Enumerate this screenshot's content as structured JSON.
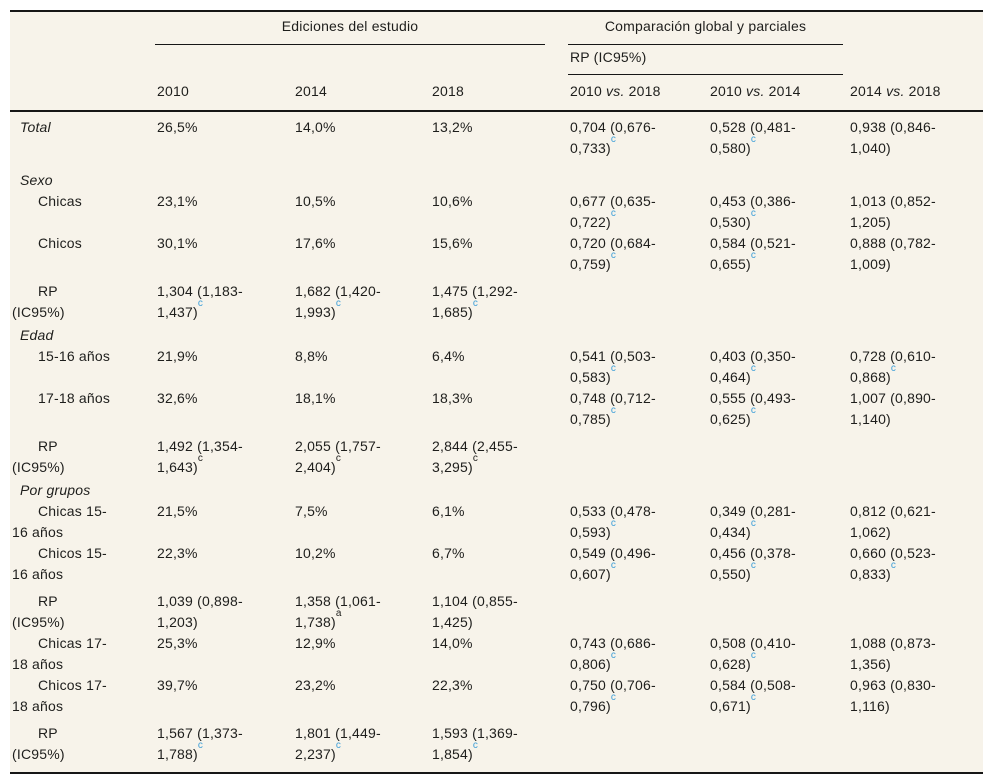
{
  "table": {
    "header": {
      "group1": "Ediciones del estudio",
      "group2": "Comparación global y parciales",
      "subgroup": "RP (IC95%)",
      "columns": [
        "2010",
        "2014",
        "2018",
        "2010 vs. 2018",
        "2010 vs. 2014",
        "2014 vs. 2018"
      ]
    },
    "rows": [
      {
        "kind": "data",
        "italic": true,
        "label_lines": [
          "Total"
        ],
        "cells": [
          {
            "t": "26,5%"
          },
          {
            "t": "14,0%"
          },
          {
            "t": "13,2%"
          },
          {
            "t": "0,704 (0,676-0,733)",
            "sup": "c",
            "blue": true
          },
          {
            "t": "0,528 (0,481-0,580)",
            "sup": "c",
            "blue": true
          },
          {
            "t": "0,938 (0,846-1,040)"
          }
        ]
      },
      {
        "kind": "section",
        "label_lines": [
          "Sexo"
        ]
      },
      {
        "kind": "data",
        "indent": true,
        "label_lines": [
          "Chicas"
        ],
        "cells": [
          {
            "t": "23,1%"
          },
          {
            "t": "10,5%"
          },
          {
            "t": "10,6%"
          },
          {
            "t": "0,677 (0,635-0,722)",
            "sup": "c",
            "blue": true
          },
          {
            "t": "0,453 (0,386-0,530)",
            "sup": "c",
            "blue": true
          },
          {
            "t": "1,013 (0,852-1,205)"
          }
        ]
      },
      {
        "kind": "data",
        "indent": true,
        "label_lines": [
          "Chicos"
        ],
        "cells": [
          {
            "t": "30,1%"
          },
          {
            "t": "17,6%"
          },
          {
            "t": "15,6%"
          },
          {
            "t": "0,720 (0,684-0,759)",
            "sup": "c",
            "blue": true
          },
          {
            "t": "0,584 (0,521-0,655)",
            "sup": "c",
            "blue": true
          },
          {
            "t": "0,888 (0,782-1,009)"
          }
        ]
      },
      {
        "kind": "data",
        "indent": true,
        "label_lines": [
          "RP",
          "(IC95%)"
        ],
        "cells": [
          {
            "t": "1,304 (1,183-1,437)",
            "sup": "c",
            "blue": true
          },
          {
            "t": "1,682 (1,420-1,993)",
            "sup": "c",
            "blue": true
          },
          {
            "t": "1,475 (1,292-1,685)",
            "sup": "c",
            "blue": true
          },
          null,
          null,
          null
        ]
      },
      {
        "kind": "section",
        "label_lines": [
          "Edad"
        ]
      },
      {
        "kind": "data",
        "indent": true,
        "label_lines": [
          "15-16 años"
        ],
        "cells": [
          {
            "t": "21,9%"
          },
          {
            "t": "8,8%"
          },
          {
            "t": "6,4%"
          },
          {
            "t": "0,541 (0,503-0,583)",
            "sup": "c",
            "blue": true
          },
          {
            "t": "0,403 (0,350-0,464)",
            "sup": "c",
            "blue": true
          },
          {
            "t": "0,728 (0,610-0,868)",
            "sup": "c",
            "blue": true
          }
        ]
      },
      {
        "kind": "data",
        "indent": true,
        "label_lines": [
          "17-18 años"
        ],
        "cells": [
          {
            "t": "32,6%"
          },
          {
            "t": "18,1%"
          },
          {
            "t": "18,3%"
          },
          {
            "t": "0,748 (0,712-0,785)",
            "sup": "c",
            "blue": true
          },
          {
            "t": "0,555 (0,493-0,625)",
            "sup": "c",
            "blue": true
          },
          {
            "t": "1,007 (0,890-1,140)"
          }
        ]
      },
      {
        "kind": "data",
        "indent": true,
        "label_lines": [
          "RP",
          "(IC95%)"
        ],
        "cells": [
          {
            "t": "1,492 (1,354-1,643)",
            "sup": "c",
            "blue": false
          },
          {
            "t": "2,055 (1,757-2,404)",
            "sup": "c",
            "blue": false
          },
          {
            "t": "2,844 (2,455-3,295)",
            "sup": "c",
            "blue": false
          },
          null,
          null,
          null
        ]
      },
      {
        "kind": "section",
        "label_lines": [
          "Por grupos"
        ]
      },
      {
        "kind": "data",
        "indent": true,
        "label_lines": [
          "Chicas 15-",
          "16 años"
        ],
        "cells": [
          {
            "t": "21,5%"
          },
          {
            "t": "7,5%"
          },
          {
            "t": "6,1%"
          },
          {
            "t": "0,533 (0,478-0,593)",
            "sup": "c",
            "blue": true
          },
          {
            "t": "0,349 (0,281-0,434)",
            "sup": "c",
            "blue": true
          },
          {
            "t": "0,812 (0,621-1,062)"
          }
        ]
      },
      {
        "kind": "data",
        "indent": true,
        "label_lines": [
          "Chicos 15-",
          "16 años"
        ],
        "cells": [
          {
            "t": "22,3%"
          },
          {
            "t": "10,2%"
          },
          {
            "t": "6,7%"
          },
          {
            "t": "0,549 (0,496-0,607)",
            "sup": "c",
            "blue": true
          },
          {
            "t": "0,456 (0,378-0,550)",
            "sup": "c",
            "blue": true
          },
          {
            "t": "0,660 (0,523-0,833)",
            "sup": "c",
            "blue": true
          }
        ]
      },
      {
        "kind": "data",
        "indent": true,
        "label_lines": [
          "RP",
          "(IC95%)"
        ],
        "cells": [
          {
            "t": "1,039 (0,898-1,203)"
          },
          {
            "t": "1,358 (1,061-1,738)",
            "sup": "a",
            "blue": false
          },
          {
            "t": "1,104 (0,855-1,425)"
          },
          null,
          null,
          null
        ]
      },
      {
        "kind": "data",
        "indent": true,
        "label_lines": [
          "Chicas 17-",
          "18 años"
        ],
        "cells": [
          {
            "t": "25,3%"
          },
          {
            "t": "12,9%"
          },
          {
            "t": "14,0%"
          },
          {
            "t": "0,743 (0,686-0,806)",
            "sup": "c",
            "blue": true
          },
          {
            "t": "0,508 (0,410-0,628)",
            "sup": "c",
            "blue": true
          },
          {
            "t": "1,088 (0,873-1,356)"
          }
        ]
      },
      {
        "kind": "data",
        "indent": true,
        "label_lines": [
          "Chicos 17-",
          "18 años"
        ],
        "cells": [
          {
            "t": "39,7%"
          },
          {
            "t": "23,2%"
          },
          {
            "t": "22,3%"
          },
          {
            "t": "0,750 (0,706-0,796)",
            "sup": "c",
            "blue": true
          },
          {
            "t": "0,584 (0,508-0,671)",
            "sup": "c",
            "blue": true
          },
          {
            "t": "0,963 (0,830-1,116)"
          }
        ]
      },
      {
        "kind": "data",
        "indent": true,
        "label_lines": [
          "RP",
          "(IC95%)"
        ],
        "cells": [
          {
            "t": "1,567 (1,373-1,788)",
            "sup": "c",
            "blue": true
          },
          {
            "t": "1,801 (1,449-2,237)",
            "sup": "c",
            "blue": true
          },
          {
            "t": "1,593 (1,369-1,854)",
            "sup": "c",
            "blue": true
          },
          null,
          null,
          null
        ]
      }
    ],
    "colors": {
      "background": "#f7f3ea",
      "rule": "#161616",
      "text": "#1e1e1c",
      "footnote_link": "#3f9fd8"
    }
  }
}
